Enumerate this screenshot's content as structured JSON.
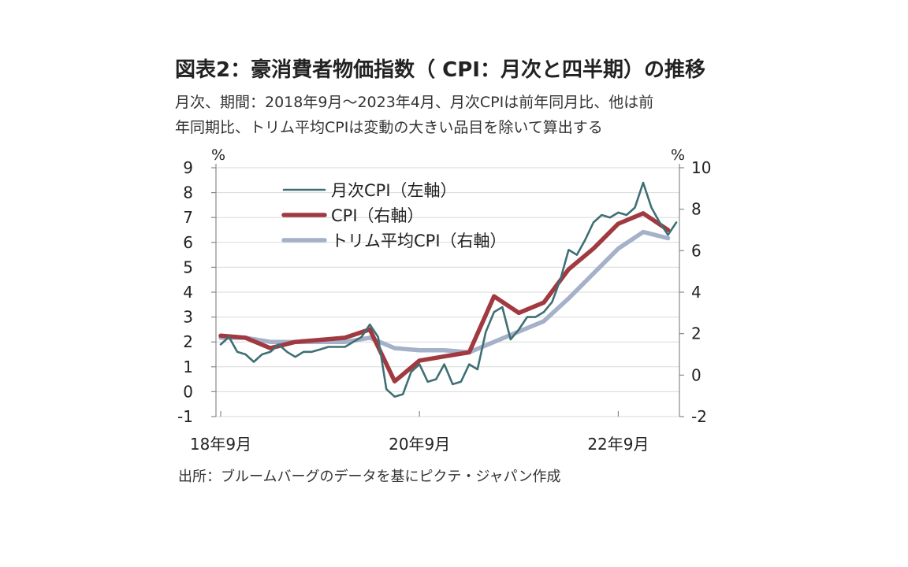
{
  "header": {
    "title": "図表2：豪消費者物価指数（ CPI：月次と四半期）の推移",
    "subtitle_line1": "月次、期間：2018年9月～2023年4月、月次CPIは前年同月比、他は前",
    "subtitle_line2": "年同期比、トリム平均CPIは変動の大きい品目を除いて算出する"
  },
  "footer": {
    "source": "出所：ブルームバーグのデータを基にピクテ・ジャパン作成"
  },
  "colors": {
    "monthly": "#3f6f74",
    "cpi": "#a03a40",
    "trimmed": "#a4b1c8",
    "axis": "#888888",
    "grid": "#d9d9d9"
  },
  "chart_data": {
    "type": "line",
    "title": "",
    "left_axis": {
      "unit": "%",
      "range": [
        -1,
        9
      ],
      "ticks": [
        "9",
        "8",
        "7",
        "6",
        "5",
        "4",
        "3",
        "2",
        "1",
        "0",
        "-1"
      ]
    },
    "right_axis": {
      "unit": "%",
      "range": [
        -2,
        10
      ],
      "ticks": [
        "10",
        "8",
        "6",
        "4",
        "2",
        "0",
        "-2"
      ]
    },
    "x_axis": {
      "start": "2018-09",
      "end": "2023-04",
      "tick_labels": [
        {
          "label": "18年9月",
          "date": "2018-09"
        },
        {
          "label": "20年9月",
          "date": "2020-09"
        },
        {
          "label": "22年9月",
          "date": "2022-09"
        }
      ]
    },
    "grid": "horizontal",
    "legend_position": "top-left",
    "series": [
      {
        "name": "月次CPI（左軸）",
        "axis": "left",
        "color_key": "monthly",
        "points": [
          [
            "2018-09",
            1.9
          ],
          [
            "2018-10",
            2.2
          ],
          [
            "2018-11",
            1.6
          ],
          [
            "2018-12",
            1.5
          ],
          [
            "2019-01",
            1.2
          ],
          [
            "2019-02",
            1.5
          ],
          [
            "2019-03",
            1.6
          ],
          [
            "2019-04",
            1.9
          ],
          [
            "2019-05",
            1.6
          ],
          [
            "2019-06",
            1.4
          ],
          [
            "2019-07",
            1.6
          ],
          [
            "2019-08",
            1.6
          ],
          [
            "2019-09",
            1.7
          ],
          [
            "2019-10",
            1.8
          ],
          [
            "2019-11",
            1.8
          ],
          [
            "2019-12",
            1.8
          ],
          [
            "2020-01",
            2.0
          ],
          [
            "2020-02",
            2.2
          ],
          [
            "2020-03",
            2.7
          ],
          [
            "2020-04",
            2.2
          ],
          [
            "2020-05",
            0.1
          ],
          [
            "2020-06",
            -0.2
          ],
          [
            "2020-07",
            -0.1
          ],
          [
            "2020-08",
            0.8
          ],
          [
            "2020-09",
            1.1
          ],
          [
            "2020-10",
            0.4
          ],
          [
            "2020-11",
            0.5
          ],
          [
            "2020-12",
            1.1
          ],
          [
            "2021-01",
            0.3
          ],
          [
            "2021-02",
            0.4
          ],
          [
            "2021-03",
            1.1
          ],
          [
            "2021-04",
            0.9
          ],
          [
            "2021-05",
            2.4
          ],
          [
            "2021-06",
            3.2
          ],
          [
            "2021-07",
            3.4
          ],
          [
            "2021-08",
            2.1
          ],
          [
            "2021-09",
            2.5
          ],
          [
            "2021-10",
            3.0
          ],
          [
            "2021-11",
            3.0
          ],
          [
            "2021-12",
            3.2
          ],
          [
            "2022-01",
            3.6
          ],
          [
            "2022-02",
            4.5
          ],
          [
            "2022-03",
            5.7
          ],
          [
            "2022-04",
            5.5
          ],
          [
            "2022-05",
            6.1
          ],
          [
            "2022-06",
            6.8
          ],
          [
            "2022-07",
            7.1
          ],
          [
            "2022-08",
            7.0
          ],
          [
            "2022-09",
            7.2
          ],
          [
            "2022-10",
            7.1
          ],
          [
            "2022-11",
            7.4
          ],
          [
            "2022-12",
            8.4
          ],
          [
            "2023-01",
            7.4
          ],
          [
            "2023-02",
            6.8
          ],
          [
            "2023-03",
            6.3
          ],
          [
            "2023-04",
            6.8
          ]
        ]
      },
      {
        "name": "CPI（右軸）",
        "axis": "right",
        "color_key": "cpi",
        "points": [
          [
            "2018-09",
            1.9
          ],
          [
            "2018-12",
            1.8
          ],
          [
            "2019-03",
            1.3
          ],
          [
            "2019-06",
            1.6
          ],
          [
            "2019-09",
            1.7
          ],
          [
            "2019-12",
            1.8
          ],
          [
            "2020-03",
            2.2
          ],
          [
            "2020-06",
            -0.3
          ],
          [
            "2020-09",
            0.7
          ],
          [
            "2020-12",
            0.9
          ],
          [
            "2021-03",
            1.1
          ],
          [
            "2021-06",
            3.8
          ],
          [
            "2021-09",
            3.0
          ],
          [
            "2021-12",
            3.5
          ],
          [
            "2022-03",
            5.1
          ],
          [
            "2022-06",
            6.1
          ],
          [
            "2022-09",
            7.3
          ],
          [
            "2022-12",
            7.8
          ],
          [
            "2023-03",
            7.0
          ]
        ]
      },
      {
        "name": "トリム平均CPI（右軸）",
        "axis": "right",
        "color_key": "trimmed",
        "points": [
          [
            "2018-09",
            1.8
          ],
          [
            "2018-12",
            1.8
          ],
          [
            "2019-03",
            1.6
          ],
          [
            "2019-06",
            1.6
          ],
          [
            "2019-09",
            1.6
          ],
          [
            "2019-12",
            1.6
          ],
          [
            "2020-03",
            1.8
          ],
          [
            "2020-06",
            1.3
          ],
          [
            "2020-09",
            1.2
          ],
          [
            "2020-12",
            1.2
          ],
          [
            "2021-03",
            1.1
          ],
          [
            "2021-06",
            1.6
          ],
          [
            "2021-09",
            2.1
          ],
          [
            "2021-12",
            2.6
          ],
          [
            "2022-03",
            3.7
          ],
          [
            "2022-06",
            4.9
          ],
          [
            "2022-09",
            6.1
          ],
          [
            "2022-12",
            6.9
          ],
          [
            "2023-03",
            6.6
          ]
        ]
      }
    ]
  }
}
